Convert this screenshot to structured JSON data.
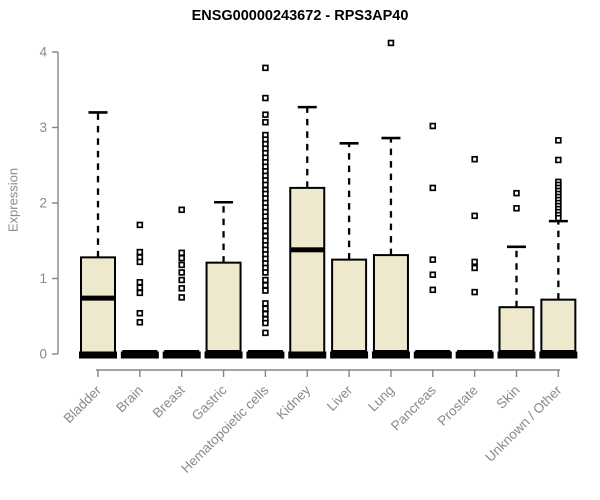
{
  "chart_data": {
    "type": "boxplot",
    "title": "ENSG00000243672 - RPS3AP40",
    "xlabel": "",
    "ylabel": "Expression",
    "ylim": [
      0,
      4
    ],
    "yticks": [
      0,
      1,
      2,
      3,
      4
    ],
    "grid": false,
    "legend": null,
    "categories": [
      "Bladder",
      "Brain",
      "Breast",
      "Gastric",
      "Hematopoietic cells",
      "Kidney",
      "Liver",
      "Lung",
      "Pancreas",
      "Prostate",
      "Skin",
      "Unknown / Other"
    ],
    "boxes": [
      {
        "q1": 0,
        "median": 0.74,
        "q3": 1.28,
        "whisker_low": 0,
        "whisker_high": 3.2,
        "outliers": []
      },
      {
        "q1": 0,
        "median": 0.02,
        "q3": 0.02,
        "whisker_low": 0,
        "whisker_high": 0.02,
        "outliers": [
          1.71,
          1.35,
          1.28,
          1.22,
          0.95,
          0.88,
          0.81,
          0.54,
          0.42
        ]
      },
      {
        "q1": 0,
        "median": 0.02,
        "q3": 0.02,
        "whisker_low": 0,
        "whisker_high": 0.02,
        "outliers": [
          1.91,
          1.34,
          1.27,
          1.18,
          1.08,
          0.98,
          0.87,
          0.75
        ]
      },
      {
        "q1": 0,
        "median": 0.02,
        "q3": 1.21,
        "whisker_low": 0,
        "whisker_high": 2.01,
        "outliers": []
      },
      {
        "q1": 0,
        "median": 0.02,
        "q3": 0.02,
        "whisker_low": 0,
        "whisker_high": 0.02,
        "outliers": [
          3.79,
          3.39,
          3.17,
          3.07,
          2.9,
          2.84,
          2.78,
          2.72,
          2.66,
          2.6,
          2.54,
          2.48,
          2.42,
          2.36,
          2.3,
          2.24,
          2.17,
          2.12,
          2.06,
          2.0,
          1.94,
          1.88,
          1.82,
          1.76,
          1.7,
          1.63,
          1.56,
          1.5,
          1.44,
          1.38,
          1.32,
          1.26,
          1.2,
          1.14,
          1.08,
          0.98,
          0.91,
          0.84,
          0.67,
          0.6,
          0.53,
          0.46,
          0.41,
          0.28
        ]
      },
      {
        "q1": 0,
        "median": 1.38,
        "q3": 2.2,
        "whisker_low": 0,
        "whisker_high": 3.27,
        "outliers": []
      },
      {
        "q1": 0,
        "median": 0.02,
        "q3": 1.25,
        "whisker_low": 0,
        "whisker_high": 2.79,
        "outliers": []
      },
      {
        "q1": 0,
        "median": 0.02,
        "q3": 1.31,
        "whisker_low": 0,
        "whisker_high": 2.86,
        "outliers": [
          4.12
        ]
      },
      {
        "q1": 0,
        "median": 0.02,
        "q3": 0.02,
        "whisker_low": 0,
        "whisker_high": 0.02,
        "outliers": [
          3.02,
          2.2,
          1.25,
          1.05,
          0.85
        ]
      },
      {
        "q1": 0,
        "median": 0.02,
        "q3": 0.02,
        "whisker_low": 0,
        "whisker_high": 0.02,
        "outliers": [
          2.58,
          1.83,
          1.22,
          1.14,
          0.82
        ]
      },
      {
        "q1": 0,
        "median": 0.02,
        "q3": 0.62,
        "whisker_low": 0,
        "whisker_high": 1.42,
        "outliers": [
          2.13,
          1.93
        ]
      },
      {
        "q1": 0,
        "median": 0.02,
        "q3": 0.72,
        "whisker_low": 0,
        "whisker_high": 1.76,
        "outliers": [
          2.83,
          2.57,
          2.28,
          2.24,
          2.2,
          2.16,
          2.12,
          2.08,
          2.04,
          2.0,
          1.96,
          1.92,
          1.88,
          1.84,
          1.8
        ]
      }
    ],
    "colors": {
      "box_fill": "#EEE8CD",
      "box_border": "#000000",
      "median": "#000000",
      "whisker": "#000000",
      "outlier_stroke": "#000000",
      "outlier_fill": "#ffffff",
      "axis": "#858585",
      "tick_text": "#8a8a8a",
      "title_text": "#000000"
    }
  }
}
